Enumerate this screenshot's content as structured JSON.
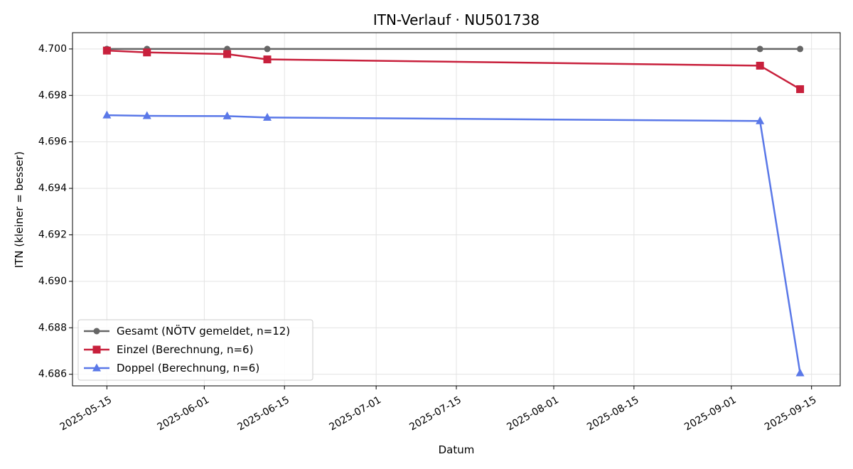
{
  "chart_data": {
    "type": "line",
    "title": "ITN-Verlauf · NU501738",
    "xlabel": "Datum",
    "ylabel": "ITN  (kleiner = besser)",
    "x_tick_labels": [
      "2025-05-15",
      "2025-06-01",
      "2025-06-15",
      "2025-07-01",
      "2025-07-15",
      "2025-08-01",
      "2025-08-15",
      "2025-09-01",
      "2025-09-15"
    ],
    "y_tick_labels": [
      "4.686",
      "4.688",
      "4.690",
      "4.692",
      "4.694",
      "4.696",
      "4.698",
      "4.700"
    ],
    "xlim": [
      "2025-05-09",
      "2025-09-20"
    ],
    "ylim": [
      4.6855,
      4.7007
    ],
    "grid": true,
    "legend_position": "lower-left",
    "series": [
      {
        "name": "Gesamt (NÖTV gemeldet, n=12)",
        "color": "#666666",
        "marker": "circle",
        "x": [
          "2025-05-15",
          "2025-05-22",
          "2025-06-05",
          "2025-06-12",
          "2025-09-06",
          "2025-09-13"
        ],
        "y": [
          4.7,
          4.7,
          4.7,
          4.7,
          4.7,
          4.7
        ]
      },
      {
        "name": "Einzel (Berechnung, n=6)",
        "color": "#c8203c",
        "marker": "square",
        "x": [
          "2025-05-15",
          "2025-05-22",
          "2025-06-05",
          "2025-06-12",
          "2025-09-06",
          "2025-09-13"
        ],
        "y": [
          4.69993,
          4.69985,
          4.69978,
          4.69955,
          4.69928,
          4.69827
        ]
      },
      {
        "name": "Doppel (Berechnung, n=6)",
        "color": "#5a78e8",
        "marker": "triangle",
        "x": [
          "2025-05-15",
          "2025-05-22",
          "2025-06-05",
          "2025-06-12",
          "2025-09-06",
          "2025-09-13"
        ],
        "y": [
          4.69715,
          4.69712,
          4.69711,
          4.69705,
          4.6969,
          4.68605
        ]
      }
    ]
  }
}
